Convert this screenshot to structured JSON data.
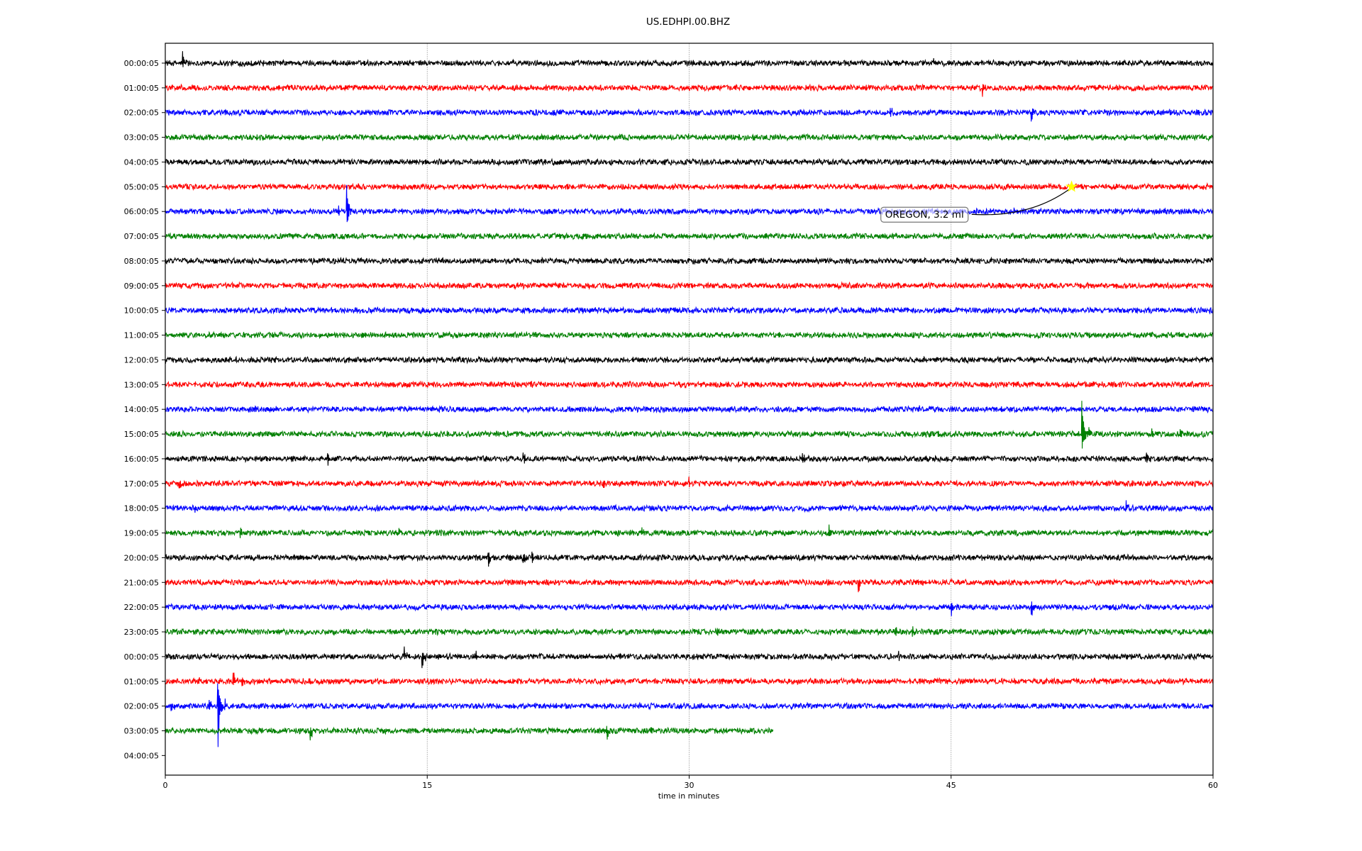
{
  "chart_data": {
    "type": "line",
    "title": "US.EDHPI.00.BHZ",
    "xlabel": "time in minutes",
    "ylabel": "",
    "xlim": [
      0,
      60
    ],
    "x_ticks": [
      "0",
      "15",
      "30",
      "45",
      "60"
    ],
    "x_tick_values": [
      0,
      15,
      30,
      45,
      60
    ],
    "grid": "vertical dotted at x ticks",
    "y_ticks": [
      "00:00:05",
      "01:00:05",
      "02:00:05",
      "03:00:05",
      "04:00:05",
      "05:00:05",
      "06:00:05",
      "07:00:05",
      "08:00:05",
      "09:00:05",
      "10:00:05",
      "11:00:05",
      "12:00:05",
      "13:00:05",
      "14:00:05",
      "15:00:05",
      "16:00:05",
      "17:00:05",
      "18:00:05",
      "19:00:05",
      "20:00:05",
      "21:00:05",
      "22:00:05",
      "23:00:05",
      "00:00:05",
      "01:00:05",
      "02:00:05",
      "03:00:05",
      "04:00:05"
    ],
    "trace_colors": [
      "#000000",
      "#ff0000",
      "#0000ff",
      "#008000"
    ],
    "last_trace_end_minute": 34.8,
    "noise_level": 0.13,
    "events": [
      {
        "row": 0,
        "minute": 1.0,
        "amp": 0.45
      },
      {
        "row": 0,
        "minute": 5.6,
        "amp": -0.25
      },
      {
        "row": 0,
        "minute": 44.0,
        "amp": 0.25
      },
      {
        "row": 1,
        "minute": 46.8,
        "amp": -0.35
      },
      {
        "row": 1,
        "minute": 56.4,
        "amp": 0.15
      },
      {
        "row": 2,
        "minute": 41.5,
        "amp": 0.3
      },
      {
        "row": 2,
        "minute": 49.6,
        "amp": -0.4
      },
      {
        "row": 6,
        "minute": 9.9,
        "amp": 0.3
      },
      {
        "row": 6,
        "minute": 10.4,
        "amp": 1.15
      },
      {
        "row": 14,
        "minute": 12.7,
        "amp": 0.2
      },
      {
        "row": 14,
        "minute": 43.2,
        "amp": 0.2
      },
      {
        "row": 15,
        "minute": 52.5,
        "amp": 1.5
      },
      {
        "row": 15,
        "minute": 52.9,
        "amp": 0.3
      },
      {
        "row": 15,
        "minute": 56.5,
        "amp": 0.2
      },
      {
        "row": 15,
        "minute": 58.1,
        "amp": 0.35
      },
      {
        "row": 16,
        "minute": 9.3,
        "amp": -0.3
      },
      {
        "row": 16,
        "minute": 20.5,
        "amp": 0.3
      },
      {
        "row": 16,
        "minute": 36.5,
        "amp": 0.3
      },
      {
        "row": 16,
        "minute": 53.3,
        "amp": -0.25
      },
      {
        "row": 16,
        "minute": 56.2,
        "amp": 0.4
      },
      {
        "row": 17,
        "minute": 0.8,
        "amp": -0.3
      },
      {
        "row": 17,
        "minute": 25.1,
        "amp": 0.25
      },
      {
        "row": 17,
        "minute": 30.0,
        "amp": 0.25
      },
      {
        "row": 18,
        "minute": 1.7,
        "amp": -0.2
      },
      {
        "row": 18,
        "minute": 55.0,
        "amp": 0.3
      },
      {
        "row": 19,
        "minute": 4.3,
        "amp": -0.3
      },
      {
        "row": 19,
        "minute": 13.4,
        "amp": 0.3
      },
      {
        "row": 19,
        "minute": 27.3,
        "amp": 0.3
      },
      {
        "row": 19,
        "minute": 38.0,
        "amp": 0.3
      },
      {
        "row": 20,
        "minute": 18.5,
        "amp": -0.4
      },
      {
        "row": 20,
        "minute": 20.5,
        "amp": -0.3
      },
      {
        "row": 20,
        "minute": 21.0,
        "amp": 0.4
      },
      {
        "row": 21,
        "minute": 39.7,
        "amp": -0.5
      },
      {
        "row": 22,
        "minute": 45.0,
        "amp": -0.35
      },
      {
        "row": 22,
        "minute": 49.6,
        "amp": -0.45
      },
      {
        "row": 23,
        "minute": 31.6,
        "amp": 0.3
      },
      {
        "row": 23,
        "minute": 41.8,
        "amp": 0.3
      },
      {
        "row": 23,
        "minute": 42.8,
        "amp": -0.3
      },
      {
        "row": 24,
        "minute": 13.7,
        "amp": 0.4
      },
      {
        "row": 24,
        "minute": 14.7,
        "amp": -0.6
      },
      {
        "row": 24,
        "minute": 17.8,
        "amp": 0.35
      },
      {
        "row": 24,
        "minute": 42.0,
        "amp": -0.25
      },
      {
        "row": 25,
        "minute": 1.9,
        "amp": 0.3
      },
      {
        "row": 25,
        "minute": 3.9,
        "amp": 0.4
      },
      {
        "row": 25,
        "minute": 4.4,
        "amp": -0.3
      },
      {
        "row": 26,
        "minute": 0.3,
        "amp": -0.3
      },
      {
        "row": 26,
        "minute": 2.5,
        "amp": 0.4
      },
      {
        "row": 26,
        "minute": 3.0,
        "amp": -2.3
      },
      {
        "row": 26,
        "minute": 3.4,
        "amp": 0.5
      },
      {
        "row": 27,
        "minute": 8.3,
        "amp": -0.6
      },
      {
        "row": 27,
        "minute": 25.3,
        "amp": -0.45
      },
      {
        "row": 27,
        "minute": 27.8,
        "amp": 0.25
      }
    ],
    "annotation": {
      "text": "OREGON, 3.2 ml",
      "marker": "star",
      "marker_color": "#ffff00",
      "row": 5,
      "minute": 51.9
    }
  }
}
